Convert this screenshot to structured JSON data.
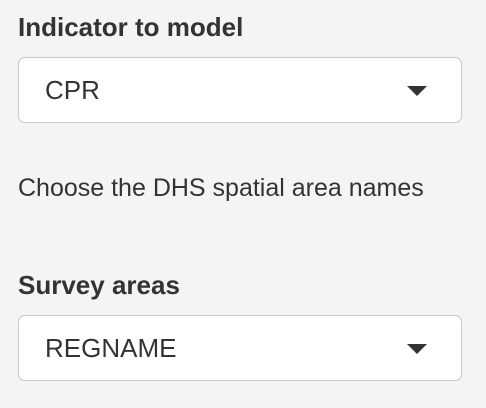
{
  "indicator": {
    "label": "Indicator to model",
    "selected": "CPR"
  },
  "help_text": "Choose the DHS spatial area names",
  "survey": {
    "label": "Survey areas",
    "selected": "REGNAME"
  },
  "icons": {
    "dropdown": "caret-down-icon"
  }
}
